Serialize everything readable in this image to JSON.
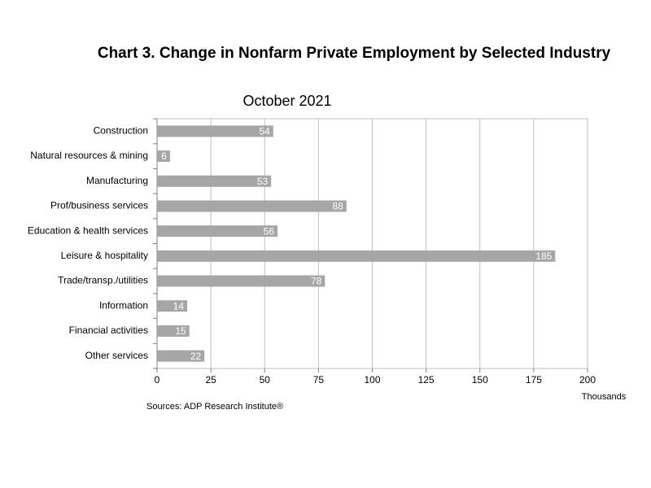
{
  "chart_data": {
    "type": "bar",
    "orientation": "horizontal",
    "title": "Chart 3. Change in Nonfarm Private Employment by Selected Industry",
    "subtitle": "October 2021",
    "xlabel": "Thousands",
    "source": "Sources: ADP Research Institute®",
    "categories": [
      "Construction",
      "Natural resources & mining",
      "Manufacturing",
      "Prof/business services",
      "Education & health services",
      "Leisure & hospitality",
      "Trade/transp./utilities",
      "Information",
      "Financial activities",
      "Other services"
    ],
    "values": [
      54,
      6,
      53,
      88,
      56,
      185,
      78,
      14,
      15,
      22
    ],
    "color": "#a6a6a6",
    "xlim": [
      0,
      200
    ],
    "xticks": [
      0,
      25,
      50,
      75,
      100,
      125,
      150,
      175,
      200
    ],
    "grid": true
  }
}
